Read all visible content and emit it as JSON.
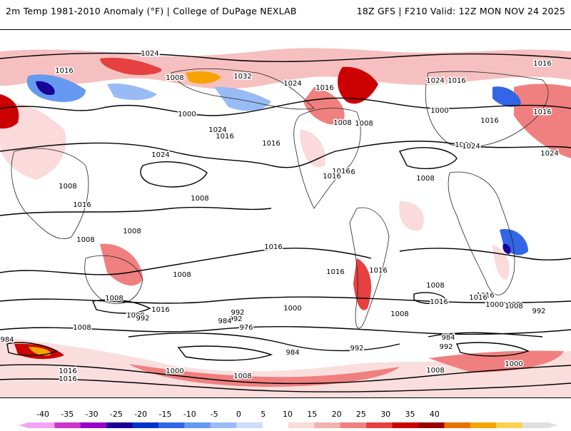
{
  "header": {
    "left_title": "2m Temp 1981-2010 Anomaly (°F) | College of DuPage NEXLAB",
    "right_title": "18Z GFS | F210 Valid: 12Z MON NOV 24 2025"
  },
  "map": {
    "projection": "global cylindrical",
    "field": "2m temperature anomaly with MSLP isobars",
    "isobar_labels": [
      "1024",
      "1016",
      "1008",
      "1032",
      "1024",
      "1016",
      "1024",
      "1016",
      "1016",
      "1000",
      "1024",
      "1016",
      "1008",
      "1000",
      "1024",
      "1016",
      "1008",
      "1016",
      "1016",
      "1024",
      "1016",
      "1024",
      "1016",
      "1016",
      "1008",
      "1008",
      "1016",
      "1008",
      "1008",
      "1008",
      "1008",
      "1016",
      "1008",
      "1016",
      "1016",
      "1008",
      "1016",
      "1008",
      "1016",
      "1000",
      "992",
      "1000",
      "992",
      "984",
      "976",
      "1008",
      "1016",
      "1016",
      "1008",
      "1000",
      "992",
      "984",
      "992",
      "984",
      "992",
      "984",
      "1024",
      "1016",
      "1000",
      "1008",
      "1008",
      "1000",
      "992",
      "1016",
      "1024"
    ]
  },
  "colorbar": {
    "tick_labels": [
      "-40",
      "-35",
      "-30",
      "-25",
      "-20",
      "-15",
      "-10",
      "-5",
      "0",
      "5",
      "10",
      "15",
      "20",
      "25",
      "30",
      "35",
      "40"
    ],
    "colors": [
      "#f5a3f5",
      "#cc33cc",
      "#9900cc",
      "#1a0099",
      "#0033cc",
      "#3366e6",
      "#6699f0",
      "#99bbf5",
      "#ccdcfa",
      "#ffffff",
      "#fadada",
      "#f5b0b0",
      "#f08080",
      "#e64040",
      "#cc0000",
      "#990000",
      "#e67300",
      "#f5a300",
      "#fad24d",
      "#e0e0e0"
    ]
  }
}
